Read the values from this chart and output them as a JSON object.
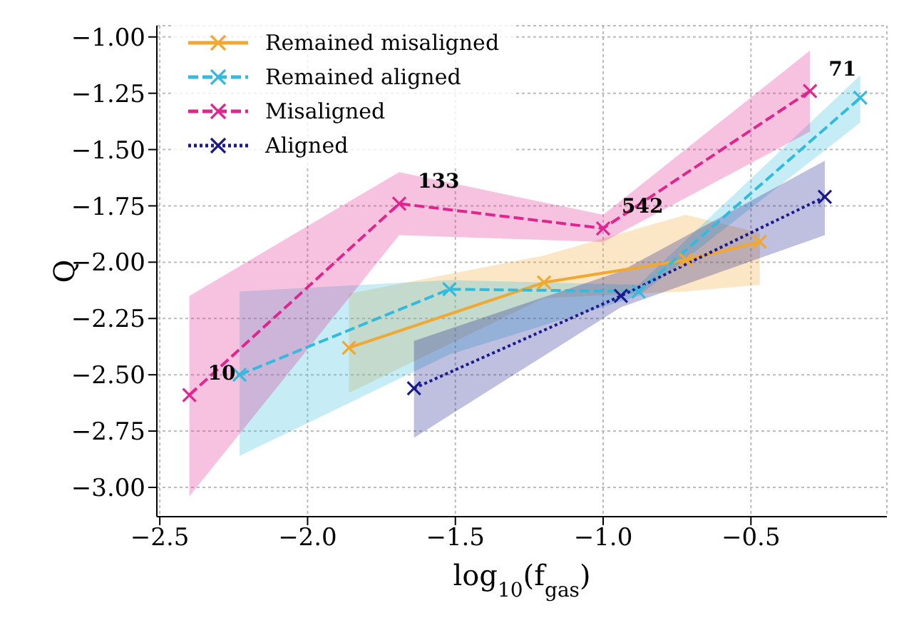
{
  "chart_data": {
    "type": "line",
    "xlabel": "log$_{10}$(f$_{gas}$)",
    "ylabel": "Q",
    "xlim": [
      -2.51,
      -0.04
    ],
    "ylim": [
      -3.13,
      -0.95
    ],
    "xticks": [
      {
        "value": -2.5,
        "label": "−2.5"
      },
      {
        "value": -2.0,
        "label": "−2.0"
      },
      {
        "value": -1.5,
        "label": "−1.5"
      },
      {
        "value": -1.0,
        "label": "−1.0"
      },
      {
        "value": -0.5,
        "label": "−0.5"
      }
    ],
    "yticks": [
      {
        "value": -1.0,
        "label": "−1.00"
      },
      {
        "value": -1.25,
        "label": "−1.25"
      },
      {
        "value": -1.5,
        "label": "−1.50"
      },
      {
        "value": -1.75,
        "label": "−1.75"
      },
      {
        "value": -2.0,
        "label": "−2.00"
      },
      {
        "value": -2.25,
        "label": "−2.25"
      },
      {
        "value": -2.5,
        "label": "−2.50"
      },
      {
        "value": -2.75,
        "label": "−2.75"
      },
      {
        "value": -3.0,
        "label": "−3.00"
      }
    ],
    "grid": true,
    "legend": "top left",
    "marker": "cross",
    "series": [
      {
        "name": "Remained misaligned",
        "color": "#f0a830",
        "line_style": "solid",
        "x": [
          -1.86,
          -1.2,
          -0.72,
          -0.47
        ],
        "values": [
          -2.38,
          -2.09,
          -1.99,
          -1.91
        ],
        "lower": [
          -2.58,
          -2.16,
          -2.13,
          -2.1
        ],
        "upper": [
          -2.14,
          -1.97,
          -1.79,
          -1.87
        ]
      },
      {
        "name": "Remained aligned",
        "color": "#33bbdd",
        "line_style": "dashed",
        "x": [
          -2.23,
          -1.52,
          -0.88,
          -0.13
        ],
        "values": [
          -2.5,
          -2.12,
          -2.13,
          -1.27
        ],
        "lower": [
          -2.86,
          -2.41,
          -2.15,
          -1.38
        ],
        "upper": [
          -2.13,
          -2.08,
          -2.1,
          -1.17
        ]
      },
      {
        "name": "Misaligned",
        "color": "#e0258f",
        "line_style": "dashed",
        "x": [
          -2.4,
          -1.69,
          -1.0,
          -0.3
        ],
        "values": [
          -2.59,
          -1.74,
          -1.85,
          -1.24
        ],
        "lower": [
          -3.04,
          -1.88,
          -1.91,
          -1.42
        ],
        "upper": [
          -2.15,
          -1.6,
          -1.79,
          -1.06
        ]
      },
      {
        "name": "Aligned",
        "color": "#1a1a8c",
        "line_style": "dotted",
        "x": [
          -1.64,
          -0.94,
          -0.25
        ],
        "values": [
          -2.56,
          -2.15,
          -1.71
        ],
        "lower": [
          -2.78,
          -2.2,
          -1.88
        ],
        "upper": [
          -2.35,
          -2.04,
          -1.55
        ]
      }
    ],
    "annotations": [
      {
        "text": "10",
        "x": -2.4,
        "y": -2.59
      },
      {
        "text": "133",
        "x": -1.69,
        "y": -1.74
      },
      {
        "text": "542",
        "x": -1.0,
        "y": -1.85
      },
      {
        "text": "71",
        "x": -0.3,
        "y": -1.24
      }
    ]
  }
}
